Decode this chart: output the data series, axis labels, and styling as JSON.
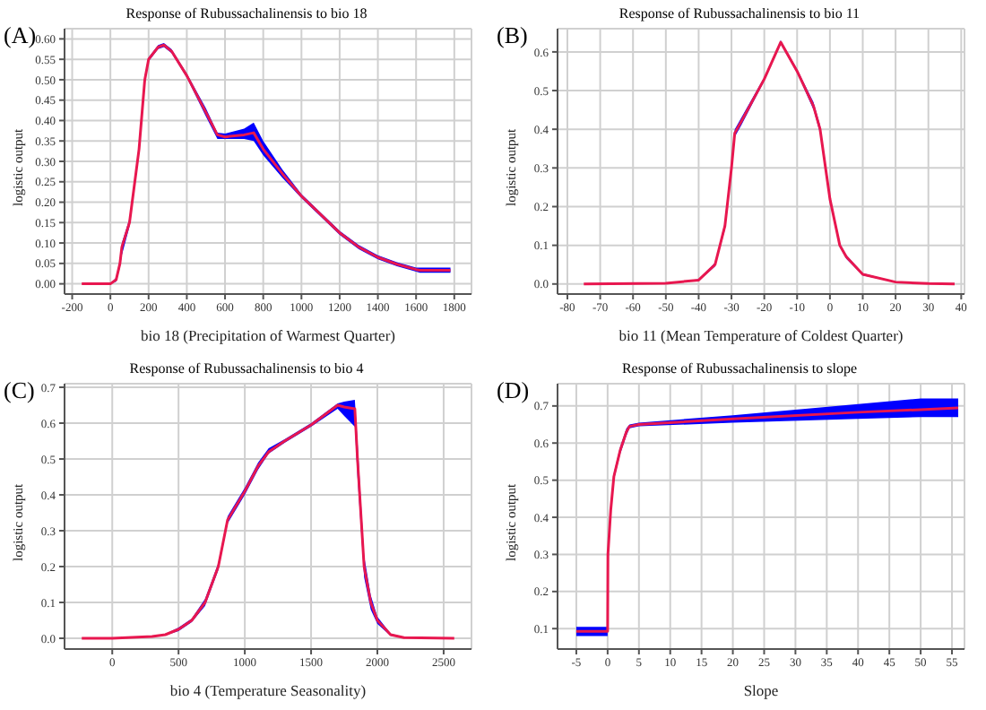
{
  "chart_data": [
    {
      "type": "line",
      "title": "Response of Rubussachalinensis to bio 18",
      "xlabel": "bio 18 (Precipitation of Warmest Quarter)",
      "ylabel": "logistic output",
      "annotations": [
        "(A)"
      ],
      "grid": true,
      "legend": false,
      "marker": "none",
      "line_style": "solid",
      "xlim": [
        -240,
        1890
      ],
      "xticks": [
        -200,
        0,
        200,
        400,
        600,
        800,
        1000,
        1200,
        1400,
        1600,
        1800
      ],
      "ylim": [
        -0.025,
        0.625
      ],
      "yticks": [
        {
          "value": 0,
          "label": "0.00"
        },
        0.05,
        {
          "value": 0.1,
          "label": "0.10"
        },
        0.15,
        {
          "value": 0.2,
          "label": "0.20"
        },
        0.25,
        {
          "value": 0.3,
          "label": "0.30"
        },
        0.35,
        {
          "value": 0.4,
          "label": "0.40"
        },
        0.45,
        {
          "value": 0.5,
          "label": "0.50"
        },
        0.55,
        {
          "value": 0.6,
          "label": "0.60"
        }
      ],
      "series": [
        {
          "color": "#e8174f",
          "x": [
            -150,
            0,
            30,
            50,
            60,
            100,
            150,
            180,
            200,
            250,
            280,
            320,
            400,
            500,
            560,
            600,
            700,
            750,
            800,
            900,
            1000,
            1100,
            1200,
            1300,
            1400,
            1500,
            1600,
            1620,
            1780
          ],
          "values": [
            0,
            0,
            0.01,
            0.05,
            0.09,
            0.15,
            0.33,
            0.5,
            0.55,
            0.58,
            0.585,
            0.57,
            0.51,
            0.42,
            0.365,
            0.36,
            0.365,
            0.37,
            0.33,
            0.27,
            0.215,
            0.17,
            0.125,
            0.09,
            0.065,
            0.048,
            0.035,
            0.033,
            0.033
          ],
          "lower": [
            0,
            0,
            0.005,
            0.04,
            0.07,
            0.14,
            0.32,
            0.49,
            0.545,
            0.575,
            0.58,
            0.565,
            0.505,
            0.41,
            0.355,
            0.355,
            0.355,
            0.35,
            0.315,
            0.26,
            0.21,
            0.165,
            0.12,
            0.085,
            0.06,
            0.043,
            0.03,
            0.027,
            0.027
          ],
          "upper": [
            0,
            0,
            0.015,
            0.06,
            0.1,
            0.16,
            0.34,
            0.51,
            0.555,
            0.585,
            0.59,
            0.575,
            0.515,
            0.43,
            0.37,
            0.368,
            0.38,
            0.395,
            0.35,
            0.28,
            0.22,
            0.175,
            0.13,
            0.095,
            0.07,
            0.053,
            0.04,
            0.04,
            0.04
          ]
        }
      ]
    },
    {
      "type": "line",
      "title": "Response of Rubussachalinensis to bio 11",
      "xlabel": "bio 11 (Mean Temperature of Coldest Quarter)",
      "ylabel": "logistic output",
      "annotations": [
        "(B)"
      ],
      "grid": true,
      "legend": false,
      "marker": "none",
      "line_style": "solid",
      "xlim": [
        -83,
        41
      ],
      "xticks": [
        -80,
        -70,
        -60,
        -50,
        -40,
        -30,
        -20,
        -10,
        0,
        10,
        20,
        30,
        40
      ],
      "ylim": [
        -0.026,
        0.66
      ],
      "yticks": [
        {
          "value": 0,
          "label": "0.0"
        },
        0.1,
        0.2,
        0.3,
        0.4,
        0.5,
        0.6
      ],
      "series": [
        {
          "color": "#e8174f",
          "x": [
            -75,
            -50,
            -40,
            -35,
            -32,
            -30,
            -29,
            -27,
            -20,
            -15,
            -10,
            -5,
            -3,
            -1,
            0,
            3,
            5,
            10,
            20,
            30,
            38
          ],
          "values": [
            0,
            0.002,
            0.01,
            0.05,
            0.15,
            0.3,
            0.39,
            0.42,
            0.53,
            0.625,
            0.55,
            0.46,
            0.4,
            0.28,
            0.22,
            0.1,
            0.07,
            0.025,
            0.005,
            0.001,
            0
          ],
          "lower": [
            0,
            0.001,
            0.008,
            0.045,
            0.14,
            0.29,
            0.38,
            0.41,
            0.525,
            0.62,
            0.545,
            0.45,
            0.39,
            0.27,
            0.21,
            0.095,
            0.065,
            0.022,
            0.004,
            0,
            0
          ],
          "upper": [
            0,
            0.003,
            0.012,
            0.055,
            0.16,
            0.31,
            0.4,
            0.43,
            0.535,
            0.63,
            0.555,
            0.47,
            0.41,
            0.29,
            0.23,
            0.105,
            0.075,
            0.028,
            0.006,
            0.002,
            0
          ]
        }
      ]
    },
    {
      "type": "line",
      "title": "Response of Rubussachalinensis to bio 4",
      "xlabel": "bio 4 (Temperature Seasonality)",
      "ylabel": "logistic output",
      "annotations": [
        "(C)"
      ],
      "grid": true,
      "legend": false,
      "marker": "none",
      "line_style": "solid",
      "xlim": [
        -360,
        2710
      ],
      "xticks": [
        0,
        500,
        1000,
        1500,
        2000,
        2500
      ],
      "ylim": [
        -0.03,
        0.71
      ],
      "yticks": [
        {
          "value": 0,
          "label": "0.0"
        },
        0.1,
        0.2,
        0.3,
        0.4,
        0.5,
        0.6,
        0.7
      ],
      "series": [
        {
          "color": "#e8174f",
          "x": [
            -230,
            0,
            300,
            400,
            500,
            600,
            700,
            800,
            870,
            1000,
            1100,
            1180,
            1300,
            1500,
            1700,
            1750,
            1830,
            1850,
            1900,
            1950,
            2000,
            2100,
            2200,
            2580
          ],
          "values": [
            0,
            0,
            0.005,
            0.01,
            0.025,
            0.05,
            0.1,
            0.2,
            0.33,
            0.41,
            0.48,
            0.52,
            0.55,
            0.595,
            0.65,
            0.645,
            0.64,
            0.5,
            0.2,
            0.1,
            0.05,
            0.01,
            0.002,
            0
          ],
          "lower": [
            0,
            0,
            0.003,
            0.008,
            0.02,
            0.045,
            0.09,
            0.19,
            0.32,
            0.4,
            0.47,
            0.515,
            0.545,
            0.59,
            0.64,
            0.62,
            0.59,
            0.45,
            0.17,
            0.08,
            0.04,
            0.007,
            0.001,
            0
          ],
          "upper": [
            0,
            0,
            0.007,
            0.012,
            0.03,
            0.055,
            0.11,
            0.21,
            0.34,
            0.42,
            0.49,
            0.53,
            0.555,
            0.6,
            0.655,
            0.66,
            0.665,
            0.55,
            0.23,
            0.12,
            0.06,
            0.013,
            0.003,
            0
          ]
        }
      ]
    },
    {
      "type": "line",
      "title": "Response of Rubussachalinensis to slope",
      "xlabel": "Slope",
      "ylabel": "logistic output",
      "annotations": [
        "(D)"
      ],
      "grid": true,
      "legend": false,
      "marker": "none",
      "line_style": "solid",
      "xlim": [
        -8,
        57
      ],
      "xticks": [
        -5,
        0,
        5,
        10,
        15,
        20,
        25,
        30,
        35,
        40,
        45,
        50,
        55
      ],
      "ylim": [
        0.045,
        0.76
      ],
      "yticks": [
        0.1,
        0.2,
        0.3,
        0.4,
        0.5,
        0.6,
        0.7
      ],
      "series": [
        {
          "color": "#e8174f",
          "x": [
            -5,
            0,
            0.05,
            0.5,
            1,
            2,
            3,
            3.5,
            5,
            20,
            40,
            50,
            56
          ],
          "values": [
            0.093,
            0.093,
            0.3,
            0.42,
            0.51,
            0.58,
            0.63,
            0.645,
            0.65,
            0.665,
            0.683,
            0.69,
            0.695
          ],
          "lower": [
            0.08,
            0.08,
            0.29,
            0.41,
            0.5,
            0.57,
            0.62,
            0.64,
            0.645,
            0.655,
            0.665,
            0.67,
            0.67
          ],
          "upper": [
            0.105,
            0.105,
            0.31,
            0.43,
            0.52,
            0.59,
            0.64,
            0.65,
            0.655,
            0.675,
            0.705,
            0.72,
            0.72
          ]
        }
      ]
    }
  ]
}
